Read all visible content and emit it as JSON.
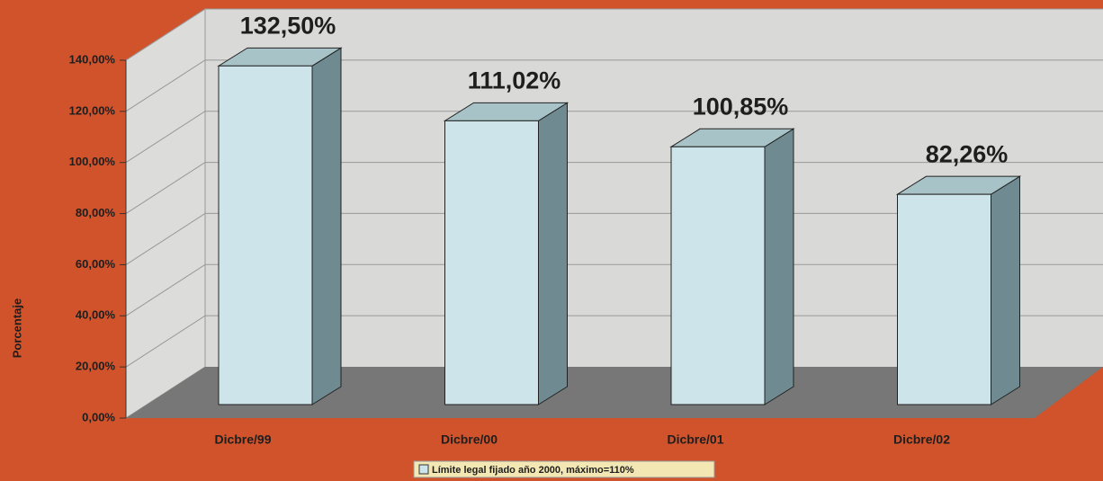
{
  "chart_data": {
    "type": "bar3d",
    "categories": [
      "Dicbre/99",
      "Dicbre/00",
      "Dicbre/01",
      "Dicbre/02"
    ],
    "values": [
      132.5,
      111.02,
      100.85,
      82.26
    ],
    "value_labels": [
      "132,50%",
      "111,02%",
      "100,85%",
      "82,26%"
    ],
    "color": "#cde5ea",
    "y_label": "Porcentaje",
    "legend": "Límite legal fijado año 2000, máximo=110%",
    "ylim": [
      0,
      140
    ],
    "yticks": [
      {
        "value": 0,
        "label": "0,00%"
      },
      {
        "value": 20,
        "label": "20,00%"
      },
      {
        "value": 40,
        "label": "40,00%"
      },
      {
        "value": 60,
        "label": "60,00%"
      },
      {
        "value": 80,
        "label": "80,00%"
      },
      {
        "value": 100,
        "label": "100,00%"
      },
      {
        "value": 120,
        "label": "120,00%"
      },
      {
        "value": 140,
        "label": "140,00%"
      }
    ],
    "grid": true
  }
}
